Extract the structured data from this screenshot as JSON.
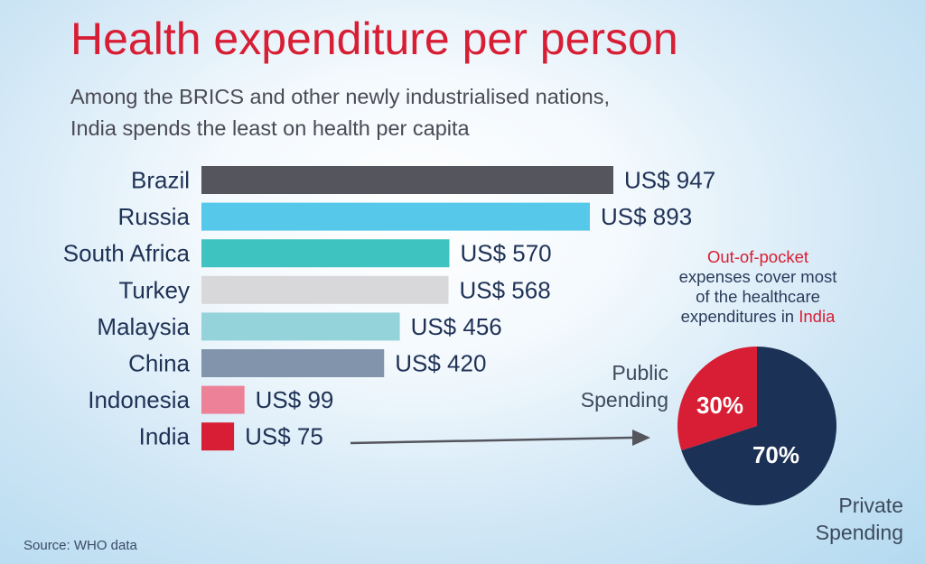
{
  "title": "Health expenditure per person",
  "subtitle_line1": "Among the BRICS and other newly industrialised nations,",
  "subtitle_line2": "India spends the least on health per capita",
  "value_prefix": "US$ ",
  "colors": {
    "Brazil": "#55555d",
    "Russia": "#56c8ea",
    "South Africa": "#3fc3c0",
    "Turkey": "#d8d8da",
    "Malaysia": "#94d3da",
    "China": "#8294ac",
    "Indonesia": "#ec8198",
    "India": "#d81e34",
    "pie_public": "#d81e34",
    "pie_private": "#1c3156",
    "arrow": "#55555d"
  },
  "note": {
    "line1": "Out-of-pocket",
    "line2": "expenses cover most",
    "line3": "of the healthcare",
    "line4_prefix": "expenditures in ",
    "line4_highlight": "India"
  },
  "pie_labels": {
    "public_line1": "Public",
    "public_line2": "Spending",
    "private_line1": "Private",
    "private_line2": "Spending"
  },
  "source": "Source: WHO data",
  "chart_data": [
    {
      "type": "bar",
      "orientation": "horizontal",
      "categories": [
        "Brazil",
        "Russia",
        "South Africa",
        "Turkey",
        "Malaysia",
        "China",
        "Indonesia",
        "India"
      ],
      "values": [
        947,
        893,
        570,
        568,
        456,
        420,
        99,
        75
      ],
      "value_labels": [
        "US$ 947",
        "US$ 893",
        "US$ 570",
        "US$ 568",
        "US$ 456",
        "US$ 420",
        "US$ 99",
        "US$ 75"
      ],
      "title": "Health expenditure per person",
      "xlabel": "",
      "ylabel": "",
      "grid": false
    },
    {
      "type": "pie",
      "categories": [
        "Public Spending",
        "Private Spending"
      ],
      "values": [
        30,
        70
      ],
      "value_labels": [
        "30%",
        "70%"
      ]
    }
  ]
}
